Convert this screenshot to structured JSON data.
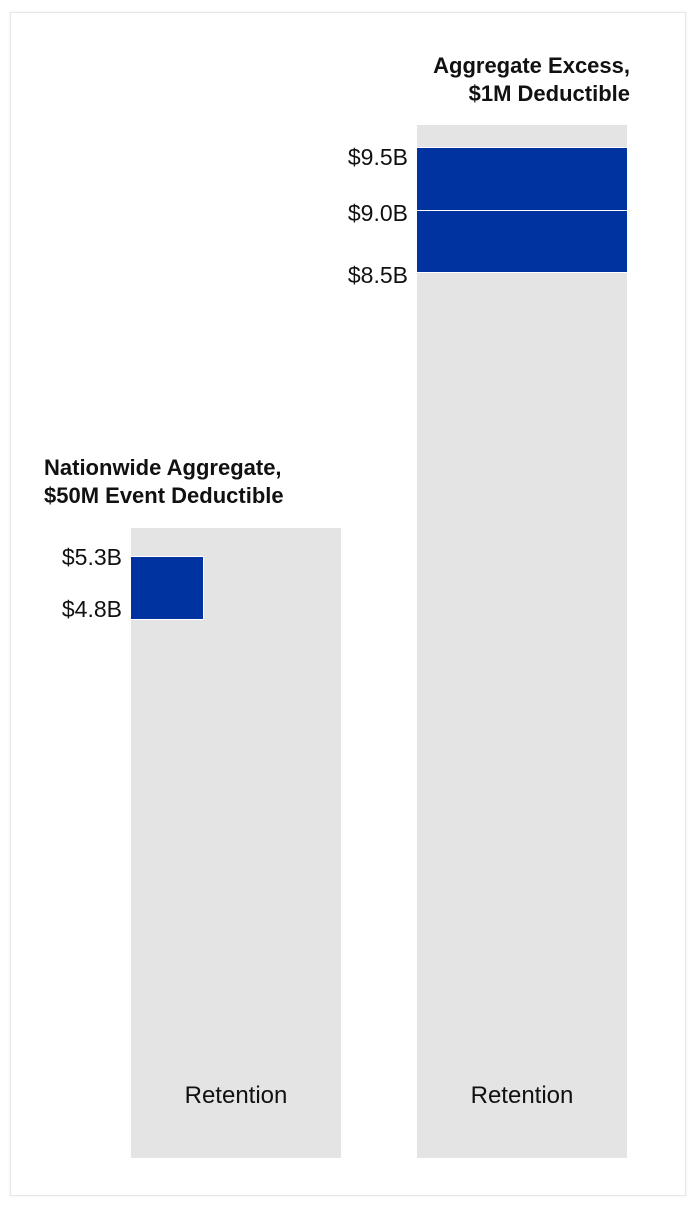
{
  "chart_data": {
    "type": "bar",
    "groups": [
      {
        "title_lines": [
          "Nationwide  Aggregate,",
          "$50M Event Deductible"
        ],
        "base_label": "Retention",
        "layers": [
          {
            "from": 4.8,
            "to": 5.3
          }
        ],
        "tick_labels": [
          "$5.3B",
          "$4.8B"
        ]
      },
      {
        "title_lines": [
          "Aggregate Excess,",
          "$1M Deductible"
        ],
        "base_label": "Retention",
        "layers": [
          {
            "from": 9.0,
            "to": 9.5
          },
          {
            "from": 8.5,
            "to": 9.0
          }
        ],
        "tick_labels": [
          "$9.5B",
          "$9.0B",
          "$8.5B"
        ]
      }
    ],
    "units": "$B",
    "colors": {
      "layer": "#0033a0",
      "retention": "#e4e4e4"
    }
  }
}
